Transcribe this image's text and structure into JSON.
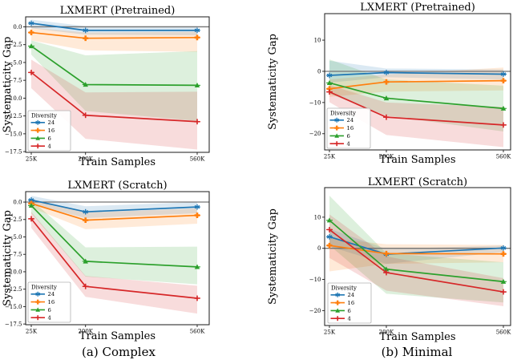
{
  "captions": [
    "(a) Complex",
    "(b) Minimal"
  ],
  "chart_data": [
    {
      "type": "line",
      "title": "LXMERT (Pretrained)",
      "subfigure": "Complex",
      "xlabel": "Train Samples",
      "ylabel": "Systematicity Gap",
      "x": [
        25000,
        200000,
        560000
      ],
      "xtick_labels": [
        "25K",
        "200K",
        "560K"
      ],
      "ylim": [
        -17.6,
        1.4
      ],
      "yticks": [
        0,
        -2.5,
        -5,
        -7.5,
        -10,
        -12.5,
        -15,
        -17.5
      ],
      "ytick_labels": [
        "0.0",
        "−2.5",
        "−5.0",
        "−7.5",
        "−10.0",
        "−12.5",
        "−15.0",
        "−17.5"
      ],
      "zero_line": true,
      "grid": false,
      "legend": {
        "title": "Diversity",
        "position": "lower left"
      },
      "series": [
        {
          "name": "24",
          "color": "#1f77b4",
          "marker": "star",
          "values": [
            0.5,
            -0.5,
            -0.5
          ],
          "band_hi": [
            1.0,
            0.1,
            0.1
          ],
          "band_lo": [
            -0.2,
            -1.1,
            -1.2
          ]
        },
        {
          "name": "16",
          "color": "#ff7f0e",
          "marker": "plus-filled",
          "values": [
            -0.8,
            -1.6,
            -1.5
          ],
          "band_hi": [
            -0.1,
            -0.8,
            -0.7
          ],
          "band_lo": [
            -1.9,
            -3.3,
            -3.5
          ]
        },
        {
          "name": "6",
          "color": "#2ca02c",
          "marker": "triangle-up",
          "values": [
            -2.7,
            -8.1,
            -8.2
          ],
          "band_hi": [
            -1.9,
            -4.0,
            -3.4
          ],
          "band_lo": [
            -3.9,
            -11.8,
            -13.2
          ]
        },
        {
          "name": "4",
          "color": "#d62728",
          "marker": "plus",
          "values": [
            -6.4,
            -12.4,
            -13.3
          ],
          "band_hi": [
            -4.6,
            -9.2,
            -9.1
          ],
          "band_lo": [
            -8.6,
            -15.7,
            -17.2
          ]
        }
      ]
    },
    {
      "type": "line",
      "title": "LXMERT (Scratch)",
      "subfigure": "Complex",
      "xlabel": "Train Samples",
      "ylabel": "Systematicity Gap",
      "x": [
        25000,
        200000,
        560000
      ],
      "xtick_labels": [
        "25K",
        "200K",
        "560K"
      ],
      "ylim": [
        -17.6,
        1.5
      ],
      "yticks": [
        0,
        -2.5,
        -5,
        -7.5,
        -10,
        -12.5,
        -15,
        -17.5
      ],
      "ytick_labels": [
        "0.0",
        "−2.5",
        "−5.0",
        "−7.5",
        "−10.0",
        "−12.5",
        "−15.0",
        "−17.5"
      ],
      "zero_line": true,
      "grid": false,
      "legend": {
        "title": "Diversity",
        "position": "lower left"
      },
      "series": [
        {
          "name": "24",
          "color": "#1f77b4",
          "marker": "star",
          "values": [
            0.3,
            -1.4,
            -0.7
          ],
          "band_hi": [
            0.9,
            -0.6,
            0.0
          ],
          "band_lo": [
            -0.3,
            -2.3,
            -1.6
          ]
        },
        {
          "name": "16",
          "color": "#ff7f0e",
          "marker": "plus-filled",
          "values": [
            -0.2,
            -2.6,
            -1.9
          ],
          "band_hi": [
            0.4,
            -1.5,
            -0.9
          ],
          "band_lo": [
            -0.8,
            -3.9,
            -3.1
          ]
        },
        {
          "name": "6",
          "color": "#2ca02c",
          "marker": "triangle-up",
          "values": [
            -0.5,
            -8.5,
            -9.3
          ],
          "band_hi": [
            0.3,
            -6.5,
            -6.4
          ],
          "band_lo": [
            -1.6,
            -10.7,
            -11.8
          ]
        },
        {
          "name": "4",
          "color": "#d62728",
          "marker": "plus",
          "values": [
            -2.4,
            -12.1,
            -13.8
          ],
          "band_hi": [
            -1.4,
            -10.6,
            -12.0
          ],
          "band_lo": [
            -3.7,
            -13.6,
            -16.0
          ]
        }
      ]
    },
    {
      "type": "line",
      "title": "LXMERT (Pretrained)",
      "subfigure": "Minimal",
      "xlabel": "Train Samples",
      "ylabel": "Systematicity Gap",
      "x": [
        25000,
        200000,
        560000
      ],
      "xtick_labels": [
        "25K",
        "200K",
        "560K"
      ],
      "ylim": [
        -25.2,
        18.5
      ],
      "yticks": [
        10,
        0,
        -10,
        -20
      ],
      "ytick_labels": [
        "10",
        "0",
        "−10",
        "−20"
      ],
      "zero_line": true,
      "grid": false,
      "legend": {
        "title": "Diversity",
        "position": "lower left"
      },
      "series": [
        {
          "name": "24",
          "color": "#1f77b4",
          "marker": "star",
          "values": [
            -1.3,
            -0.4,
            -0.9
          ],
          "band_hi": [
            3.4,
            0.9,
            0.6
          ],
          "band_lo": [
            -3.6,
            -1.9,
            -2.6
          ]
        },
        {
          "name": "16",
          "color": "#ff7f0e",
          "marker": "plus-filled",
          "values": [
            -5.6,
            -3.4,
            -3.0
          ],
          "band_hi": [
            -2.6,
            -1.0,
            1.2
          ],
          "band_lo": [
            -8.2,
            -6.5,
            -6.1
          ]
        },
        {
          "name": "6",
          "color": "#2ca02c",
          "marker": "triangle-up",
          "values": [
            -3.7,
            -8.6,
            -11.9
          ],
          "band_hi": [
            3.8,
            -2.6,
            -4.6
          ],
          "band_lo": [
            -7.2,
            -14.2,
            -19.3
          ]
        },
        {
          "name": "4",
          "color": "#d62728",
          "marker": "plus",
          "values": [
            -6.6,
            -14.7,
            -17.2
          ],
          "band_hi": [
            -4.4,
            -10.0,
            -11.4
          ],
          "band_lo": [
            -9.9,
            -20.4,
            -24.3
          ]
        }
      ]
    },
    {
      "type": "line",
      "title": "LXMERT (Scratch)",
      "subfigure": "Minimal",
      "xlabel": "Train Samples",
      "ylabel": "Systematicity Gap",
      "x": [
        25000,
        200000,
        560000
      ],
      "xtick_labels": [
        "25K",
        "200K",
        "560K"
      ],
      "ylim": [
        -24.8,
        19.5
      ],
      "yticks": [
        10,
        0,
        -10,
        -20
      ],
      "ytick_labels": [
        "10",
        "0",
        "−10",
        "−20"
      ],
      "zero_line": true,
      "grid": false,
      "legend": {
        "title": "Diversity",
        "position": "lower left"
      },
      "series": [
        {
          "name": "24",
          "color": "#1f77b4",
          "marker": "star",
          "values": [
            3.7,
            -1.9,
            0.1
          ],
          "band_hi": [
            6.3,
            -0.2,
            0.9
          ],
          "band_lo": [
            0.6,
            -5.0,
            -1.2
          ]
        },
        {
          "name": "16",
          "color": "#ff7f0e",
          "marker": "plus-filled",
          "values": [
            0.9,
            -1.7,
            -1.8
          ],
          "band_hi": [
            3.2,
            1.3,
            1.1
          ],
          "band_lo": [
            -7.4,
            -5.0,
            -4.5
          ]
        },
        {
          "name": "6",
          "color": "#2ca02c",
          "marker": "triangle-up",
          "values": [
            9.0,
            -6.7,
            -10.7
          ],
          "band_hi": [
            16.9,
            -1.6,
            -4.5
          ],
          "band_lo": [
            1.0,
            -14.6,
            -17.4
          ]
        },
        {
          "name": "4",
          "color": "#d62728",
          "marker": "plus",
          "values": [
            6.0,
            -7.8,
            -14.0
          ],
          "band_hi": [
            10.9,
            -2.6,
            -9.6
          ],
          "band_lo": [
            -3.1,
            -13.6,
            -18.6
          ]
        }
      ]
    }
  ]
}
